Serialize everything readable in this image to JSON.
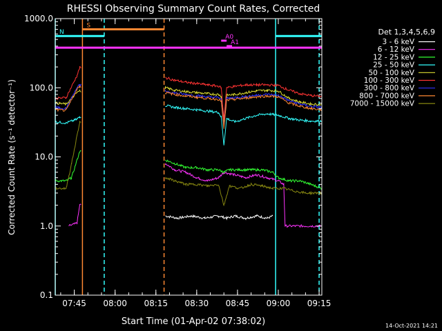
{
  "chart_data": {
    "type": "line",
    "title": "RHESSI Observing Summary Count Rates, Corrected",
    "xlabel": "Start Time (01-Apr-02 07:38:02)",
    "ylabel": "Corrected Count Rate (s⁻¹ detector⁻¹)",
    "ylim": [
      0.1,
      1000
    ],
    "y_scale": "log",
    "xlim_minutes": [
      0,
      98
    ],
    "x_ticks": [
      {
        "label": "07:45",
        "min": 7
      },
      {
        "label": "08:00",
        "min": 22
      },
      {
        "label": "08:15",
        "min": 37
      },
      {
        "label": "08:30",
        "min": 52
      },
      {
        "label": "08:45",
        "min": 67
      },
      {
        "label": "09:00",
        "min": 82
      },
      {
        "label": "09:15",
        "min": 97
      }
    ],
    "y_ticks": [
      {
        "label": "0.1",
        "value": 0.1
      },
      {
        "label": "1.0",
        "value": 1
      },
      {
        "label": "10.0",
        "value": 10
      },
      {
        "label": "100.0",
        "value": 100
      },
      {
        "label": "1000.0",
        "value": 1000
      }
    ],
    "legend_title": "Det 1,3,4,5,6,9",
    "legend_placement": "right",
    "timestamp": "14-Oct-2021 14:21",
    "series": [
      {
        "name": "3 - 6 keV",
        "color": "#ffffff",
        "points": [
          [
            40.5,
            1.4
          ],
          [
            45,
            1.3
          ],
          [
            50,
            1.4
          ],
          [
            55,
            1.3
          ],
          [
            60,
            1.4
          ],
          [
            63,
            1.3
          ],
          [
            66,
            1.4
          ],
          [
            70,
            1.3
          ],
          [
            74,
            1.4
          ],
          [
            78,
            1.3
          ],
          [
            80,
            1.4
          ]
        ]
      },
      {
        "name": "6 - 12 keV",
        "color": "#ff33ff",
        "points": [
          [
            5,
            1.0
          ],
          [
            8,
            1.1
          ],
          [
            9,
            2.0
          ],
          [
            40.5,
            8.0
          ],
          [
            44,
            6.5
          ],
          [
            48,
            6.0
          ],
          [
            52,
            5.0
          ],
          [
            56,
            4.5
          ],
          [
            60,
            5.0
          ],
          [
            62,
            6.0
          ],
          [
            66,
            5.5
          ],
          [
            70,
            5.0
          ],
          [
            74,
            5.5
          ],
          [
            78,
            5.0
          ],
          [
            82,
            4.5
          ],
          [
            84,
            4.0
          ],
          [
            84.5,
            1.0
          ],
          [
            98,
            1.0
          ]
        ]
      },
      {
        "name": "12 - 25 keV",
        "color": "#33ff33",
        "points": [
          [
            0,
            4.5
          ],
          [
            4,
            4.5
          ],
          [
            6,
            5.0
          ],
          [
            9,
            12
          ],
          [
            40.5,
            9.0
          ],
          [
            44,
            8.0
          ],
          [
            48,
            7.0
          ],
          [
            52,
            7.0
          ],
          [
            56,
            6.5
          ],
          [
            60,
            6.5
          ],
          [
            62,
            6.0
          ],
          [
            64,
            6.5
          ],
          [
            68,
            6.5
          ],
          [
            72,
            6.5
          ],
          [
            76,
            6.5
          ],
          [
            80,
            6.0
          ],
          [
            82,
            5.0
          ],
          [
            86,
            4.5
          ],
          [
            90,
            4.5
          ],
          [
            94,
            4.0
          ],
          [
            98,
            3.5
          ]
        ]
      },
      {
        "name": "25 - 50 keV",
        "color": "#33ffff",
        "points": [
          [
            0,
            32
          ],
          [
            4,
            31
          ],
          [
            8,
            35
          ],
          [
            9,
            38
          ],
          [
            40.5,
            55
          ],
          [
            44,
            52
          ],
          [
            48,
            50
          ],
          [
            52,
            48
          ],
          [
            56,
            46
          ],
          [
            60,
            44
          ],
          [
            61,
            38
          ],
          [
            62,
            15
          ],
          [
            63,
            36
          ],
          [
            66,
            32
          ],
          [
            70,
            36
          ],
          [
            74,
            40
          ],
          [
            78,
            42
          ],
          [
            82,
            40
          ],
          [
            86,
            36
          ],
          [
            90,
            34
          ],
          [
            94,
            33
          ],
          [
            98,
            33
          ]
        ]
      },
      {
        "name": "50 - 100 keV",
        "color": "#dddd33",
        "points": [
          [
            0,
            60
          ],
          [
            4,
            58
          ],
          [
            8,
            85
          ],
          [
            9,
            90
          ],
          [
            40.5,
            100
          ],
          [
            44,
            92
          ],
          [
            48,
            88
          ],
          [
            52,
            85
          ],
          [
            56,
            82
          ],
          [
            60,
            80
          ],
          [
            61,
            75
          ],
          [
            62,
            30
          ],
          [
            63,
            78
          ],
          [
            66,
            80
          ],
          [
            70,
            85
          ],
          [
            74,
            90
          ],
          [
            78,
            92
          ],
          [
            82,
            90
          ],
          [
            86,
            70
          ],
          [
            90,
            62
          ],
          [
            94,
            58
          ],
          [
            98,
            57
          ]
        ]
      },
      {
        "name": "100 - 300 keV",
        "color": "#ff3333",
        "points": [
          [
            0,
            70
          ],
          [
            4,
            72
          ],
          [
            8,
            150
          ],
          [
            9,
            195
          ],
          [
            40.5,
            140
          ],
          [
            44,
            128
          ],
          [
            48,
            120
          ],
          [
            52,
            115
          ],
          [
            56,
            110
          ],
          [
            60,
            105
          ],
          [
            61,
            100
          ],
          [
            62,
            35
          ],
          [
            63,
            100
          ],
          [
            66,
            105
          ],
          [
            70,
            110
          ],
          [
            74,
            110
          ],
          [
            78,
            110
          ],
          [
            82,
            108
          ],
          [
            86,
            92
          ],
          [
            90,
            82
          ],
          [
            94,
            77
          ],
          [
            98,
            75
          ]
        ]
      },
      {
        "name": "300 - 800 keV",
        "color": "#3333ff",
        "points": [
          [
            0,
            52
          ],
          [
            4,
            50
          ],
          [
            8,
            100
          ],
          [
            9,
            110
          ],
          [
            40.5,
            90
          ],
          [
            44,
            84
          ],
          [
            48,
            80
          ],
          [
            52,
            77
          ],
          [
            56,
            74
          ],
          [
            60,
            72
          ],
          [
            61,
            68
          ],
          [
            62,
            28
          ],
          [
            63,
            70
          ],
          [
            66,
            72
          ],
          [
            70,
            75
          ],
          [
            74,
            78
          ],
          [
            78,
            80
          ],
          [
            82,
            78
          ],
          [
            86,
            65
          ],
          [
            90,
            58
          ],
          [
            94,
            54
          ],
          [
            98,
            52
          ]
        ]
      },
      {
        "name": "800 - 7000 keV",
        "color": "#ff8833",
        "points": [
          [
            0,
            48
          ],
          [
            4,
            47
          ],
          [
            8,
            95
          ],
          [
            9,
            105
          ],
          [
            40.5,
            85
          ],
          [
            44,
            80
          ],
          [
            48,
            76
          ],
          [
            52,
            73
          ],
          [
            56,
            70
          ],
          [
            60,
            68
          ],
          [
            61,
            64
          ],
          [
            62,
            26
          ],
          [
            63,
            66
          ],
          [
            66,
            68
          ],
          [
            70,
            71
          ],
          [
            74,
            74
          ],
          [
            78,
            76
          ],
          [
            82,
            74
          ],
          [
            86,
            60
          ],
          [
            90,
            54
          ],
          [
            94,
            50
          ],
          [
            98,
            48
          ]
        ]
      },
      {
        "name": "7000 - 15000 keV",
        "color": "#888811",
        "points": [
          [
            0,
            3.5
          ],
          [
            4,
            3.5
          ],
          [
            6,
            8.0
          ],
          [
            9,
            32
          ],
          [
            40.5,
            5.0
          ],
          [
            44,
            4.5
          ],
          [
            48,
            4.0
          ],
          [
            52,
            4.0
          ],
          [
            56,
            3.8
          ],
          [
            60,
            4.0
          ],
          [
            62,
            2.0
          ],
          [
            64,
            3.8
          ],
          [
            68,
            3.5
          ],
          [
            72,
            4.0
          ],
          [
            76,
            3.8
          ],
          [
            80,
            3.5
          ],
          [
            84,
            3.5
          ],
          [
            88,
            3.2
          ],
          [
            92,
            3.0
          ],
          [
            96,
            3.0
          ],
          [
            98,
            3.0
          ]
        ]
      }
    ],
    "vertical_markers": [
      {
        "min": 0,
        "color": "#33ffff",
        "style": "solid"
      },
      {
        "min": 10,
        "color": "#ff8833",
        "style": "solid"
      },
      {
        "min": 18,
        "color": "#33ffff",
        "style": "dashed"
      },
      {
        "min": 40,
        "color": "#ff8833",
        "style": "dashed"
      },
      {
        "min": 81,
        "color": "#33ffff",
        "style": "solid"
      },
      {
        "min": 97,
        "color": "#33ffff",
        "style": "dashed"
      }
    ],
    "flag_bars": [
      {
        "label": "S",
        "color": "#ff8833",
        "from_min": 10,
        "to_min": 40,
        "level": 700
      },
      {
        "label": "N",
        "color": "#33ffff",
        "from_min": 0,
        "to_min": 18,
        "level": 560
      },
      {
        "label": "",
        "color": "#33ffff",
        "from_min": 81,
        "to_min": 98,
        "level": 560
      },
      {
        "label": "",
        "color": "#ff33ff",
        "from_min": 0,
        "to_min": 98,
        "level": 380
      },
      {
        "label": "A0",
        "color": "#ff33ff",
        "from_min": 61,
        "to_min": 63,
        "level": 480
      },
      {
        "label": "A1",
        "color": "#ff33ff",
        "from_min": 63,
        "to_min": 65,
        "level": 400
      }
    ]
  }
}
